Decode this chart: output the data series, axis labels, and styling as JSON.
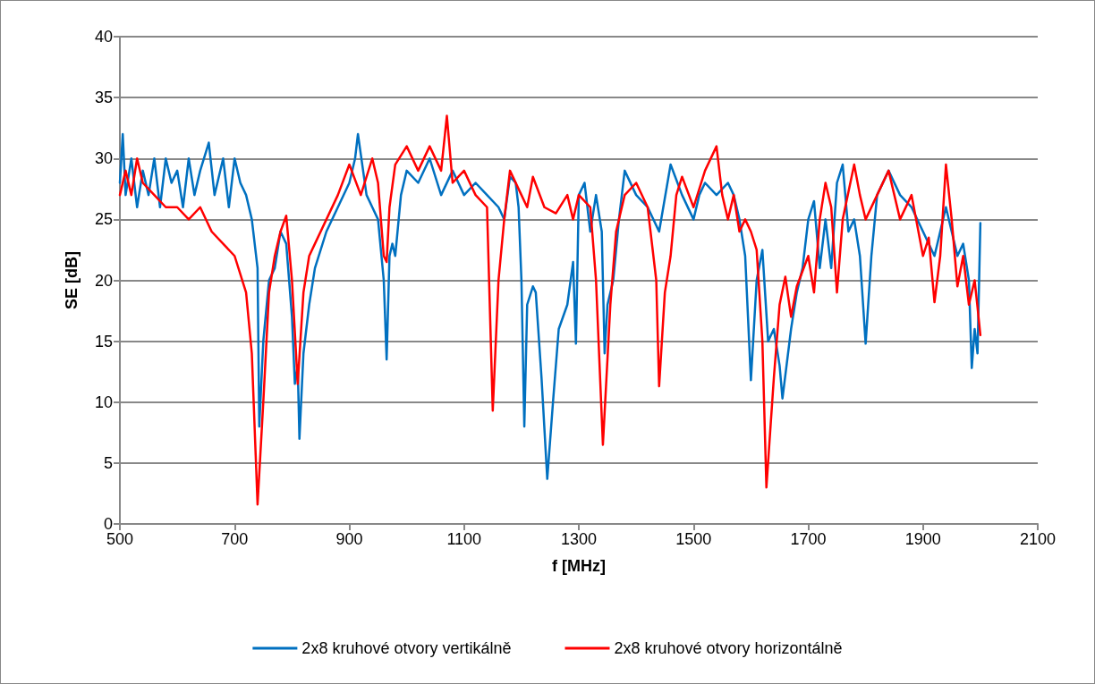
{
  "chart_data": {
    "type": "line",
    "xlabel": "f [MHz]",
    "ylabel": "SE [dB]",
    "xlim": [
      500,
      2100
    ],
    "xticks": [
      500,
      700,
      900,
      1100,
      1300,
      1500,
      1700,
      1900,
      2100
    ],
    "ylim": [
      0,
      40
    ],
    "yticks": [
      0,
      5,
      10,
      15,
      20,
      25,
      30,
      35,
      40
    ],
    "grid": "y",
    "legend": "bottom",
    "marker": "none",
    "line_style": "solid",
    "series": [
      {
        "name": "2x8 kruhové otvory vertikálně",
        "color": "#0070c0",
        "x": [
          500,
          505,
          510,
          520,
          530,
          540,
          550,
          560,
          570,
          580,
          590,
          600,
          610,
          620,
          630,
          640,
          655,
          665,
          680,
          690,
          700,
          710,
          720,
          730,
          740,
          743,
          750,
          760,
          770,
          780,
          790,
          800,
          805,
          810,
          813,
          820,
          830,
          840,
          860,
          880,
          900,
          910,
          915,
          930,
          940,
          950,
          960,
          965,
          970,
          975,
          980,
          990,
          1000,
          1020,
          1040,
          1060,
          1080,
          1100,
          1120,
          1140,
          1160,
          1170,
          1180,
          1190,
          1195,
          1200,
          1205,
          1210,
          1220,
          1225,
          1235,
          1245,
          1255,
          1265,
          1280,
          1290,
          1295,
          1300,
          1310,
          1320,
          1330,
          1340,
          1345,
          1350,
          1360,
          1370,
          1380,
          1400,
          1420,
          1440,
          1460,
          1480,
          1500,
          1510,
          1520,
          1540,
          1560,
          1570,
          1580,
          1590,
          1600,
          1610,
          1620,
          1630,
          1640,
          1650,
          1655,
          1670,
          1680,
          1690,
          1700,
          1710,
          1720,
          1730,
          1740,
          1750,
          1760,
          1770,
          1780,
          1790,
          1800,
          1810,
          1820,
          1840,
          1860,
          1880,
          1900,
          1920,
          1940,
          1960,
          1970,
          1980,
          1985,
          1990,
          1995,
          2000
        ],
        "values": [
          28,
          32,
          27,
          30,
          26,
          29,
          27,
          30,
          26,
          30,
          28,
          29,
          26,
          30,
          27,
          29,
          31.3,
          27,
          30,
          26,
          30,
          28,
          27,
          25,
          21,
          8,
          15,
          20,
          21,
          24,
          23,
          17,
          11.5,
          13,
          7,
          14,
          18,
          21,
          24,
          26,
          28,
          30,
          32,
          27,
          26,
          25,
          20,
          13.5,
          22,
          23,
          22,
          27,
          29,
          28,
          30,
          27,
          29,
          27,
          28,
          27,
          26,
          25,
          28.5,
          28,
          26,
          20,
          8,
          18,
          19.5,
          19,
          12,
          3.7,
          10,
          16,
          18,
          21.5,
          14.8,
          27,
          28,
          24,
          27,
          24,
          14,
          18,
          20,
          25,
          29,
          27,
          26,
          24,
          29.5,
          27,
          25,
          27,
          28,
          27,
          28,
          27,
          25,
          22,
          11.8,
          20,
          22.5,
          15,
          16,
          13,
          10.3,
          16,
          19,
          21,
          25,
          26.5,
          21,
          25,
          21,
          28,
          29.5,
          24,
          25,
          22,
          14.8,
          22,
          27,
          29,
          27,
          26,
          24,
          22,
          26,
          22,
          23,
          20,
          12.8,
          16,
          14,
          24.7
        ]
      },
      {
        "name": "2x8 kruhové otvory horizontálně",
        "color": "#ff0000",
        "x": [
          500,
          510,
          520,
          530,
          540,
          560,
          580,
          600,
          620,
          640,
          660,
          680,
          700,
          720,
          730,
          740,
          750,
          760,
          770,
          780,
          790,
          800,
          810,
          820,
          830,
          840,
          860,
          880,
          900,
          920,
          940,
          950,
          960,
          965,
          970,
          980,
          1000,
          1020,
          1040,
          1060,
          1070,
          1080,
          1100,
          1120,
          1140,
          1150,
          1160,
          1170,
          1180,
          1200,
          1210,
          1220,
          1240,
          1260,
          1280,
          1290,
          1300,
          1320,
          1330,
          1342,
          1355,
          1365,
          1380,
          1400,
          1420,
          1435,
          1440,
          1450,
          1460,
          1470,
          1480,
          1500,
          1520,
          1540,
          1550,
          1560,
          1570,
          1580,
          1590,
          1600,
          1610,
          1620,
          1627,
          1640,
          1650,
          1660,
          1670,
          1680,
          1700,
          1710,
          1720,
          1730,
          1740,
          1750,
          1760,
          1780,
          1790,
          1800,
          1820,
          1840,
          1860,
          1880,
          1900,
          1910,
          1920,
          1930,
          1940,
          1950,
          1960,
          1970,
          1980,
          1990,
          1995,
          2000
        ],
        "values": [
          27,
          29,
          27,
          30,
          28,
          27,
          26,
          26,
          25,
          26,
          24,
          23,
          22,
          19,
          14,
          1.6,
          10,
          19,
          22,
          24,
          25.3,
          20,
          11.5,
          19,
          22,
          23,
          25,
          27,
          29.5,
          27,
          30,
          28,
          22,
          21.5,
          26,
          29.5,
          31,
          29,
          31,
          29,
          33.5,
          28,
          29,
          27,
          26,
          9.3,
          20,
          25,
          29,
          27,
          26,
          28.5,
          26,
          25.5,
          27,
          25,
          27,
          26,
          20,
          6.5,
          18,
          24,
          27,
          28,
          26,
          20,
          11.3,
          19,
          22,
          27,
          28.5,
          26,
          29,
          31,
          27,
          25,
          27,
          24,
          25,
          24,
          22.5,
          15,
          3,
          12,
          18,
          20.3,
          17,
          19.5,
          22,
          19,
          25,
          28,
          26,
          19,
          25,
          29.5,
          27,
          25,
          27,
          29,
          25,
          27,
          22,
          23.5,
          18.2,
          22,
          29.5,
          25,
          19.5,
          22,
          18,
          20,
          17.8,
          15.5
        ]
      }
    ]
  }
}
